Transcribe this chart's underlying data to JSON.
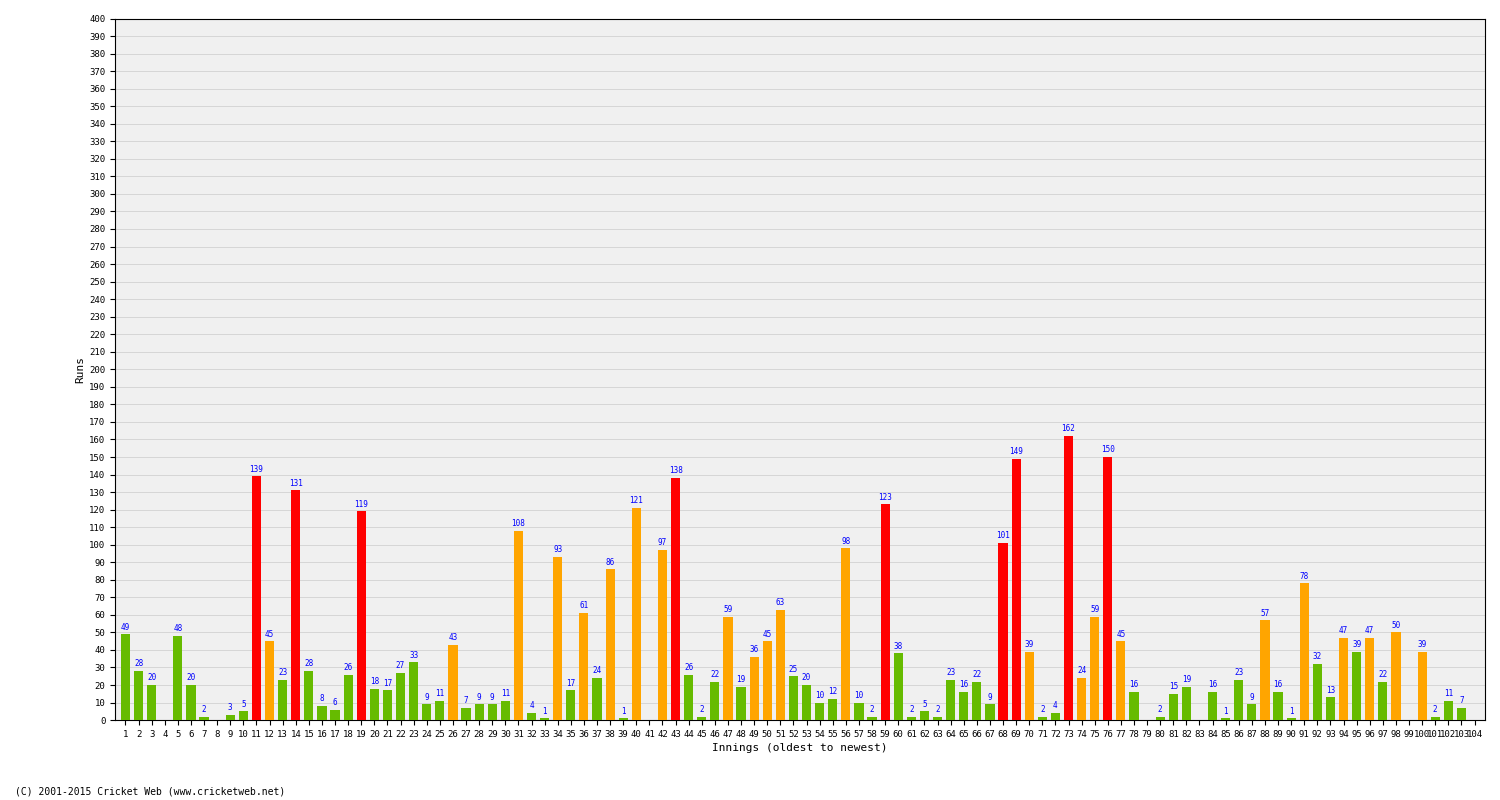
{
  "xlabel": "Innings (oldest to newest)",
  "ylabel": "Runs",
  "footer": "(C) 2001-2015 Cricket Web (www.cricketweb.net)",
  "ylim": [
    0,
    400
  ],
  "innings": [
    1,
    2,
    3,
    4,
    5,
    6,
    7,
    8,
    9,
    10,
    11,
    12,
    13,
    14,
    15,
    16,
    17,
    18,
    19,
    20,
    21,
    22,
    23,
    24,
    25,
    26,
    27,
    28,
    29,
    30,
    31,
    32,
    33,
    34,
    35,
    36,
    37,
    38,
    39,
    40,
    41,
    42,
    43,
    44,
    45,
    46,
    47,
    48,
    49,
    50,
    51,
    52,
    53,
    54,
    55,
    56,
    57,
    58,
    59,
    60,
    61,
    62,
    63,
    64,
    65,
    66,
    67,
    68,
    69,
    70,
    71,
    72,
    73,
    74,
    75,
    76,
    77,
    78,
    79,
    80,
    81,
    82,
    83,
    84,
    85,
    86,
    87,
    88,
    89,
    90,
    91,
    92,
    93,
    94,
    95,
    96,
    97,
    98,
    99,
    100,
    101,
    102,
    103,
    104
  ],
  "values": [
    49,
    28,
    20,
    0,
    48,
    20,
    2,
    0,
    3,
    5,
    139,
    45,
    23,
    131,
    28,
    8,
    6,
    26,
    119,
    18,
    17,
    27,
    33,
    9,
    11,
    43,
    7,
    9,
    9,
    11,
    108,
    4,
    1,
    93,
    17,
    61,
    24,
    86,
    1,
    121,
    0,
    97,
    138,
    26,
    2,
    22,
    59,
    19,
    36,
    45,
    63,
    25,
    20,
    10,
    12,
    98,
    10,
    2,
    123,
    38,
    2,
    5,
    2,
    23,
    16,
    22,
    9,
    101,
    149,
    39,
    2,
    4,
    162,
    24,
    59,
    150,
    45,
    16,
    0,
    2,
    15,
    19,
    0,
    16,
    1,
    23,
    9,
    57,
    16,
    1,
    78,
    32,
    13,
    47,
    39,
    47,
    22,
    50,
    0,
    39,
    2,
    11,
    7,
    0
  ],
  "colors": [
    "green",
    "green",
    "green",
    "green",
    "green",
    "green",
    "green",
    "green",
    "green",
    "green",
    "red",
    "orange",
    "green",
    "red",
    "green",
    "green",
    "green",
    "green",
    "red",
    "green",
    "green",
    "green",
    "green",
    "green",
    "green",
    "orange",
    "green",
    "green",
    "green",
    "green",
    "orange",
    "green",
    "green",
    "orange",
    "green",
    "orange",
    "green",
    "orange",
    "green",
    "orange",
    "green",
    "orange",
    "red",
    "green",
    "green",
    "green",
    "orange",
    "green",
    "orange",
    "orange",
    "orange",
    "green",
    "green",
    "green",
    "green",
    "orange",
    "green",
    "green",
    "red",
    "green",
    "green",
    "green",
    "green",
    "green",
    "green",
    "green",
    "green",
    "red",
    "red",
    "orange",
    "green",
    "green",
    "red",
    "orange",
    "orange",
    "red",
    "orange",
    "green",
    "green",
    "green",
    "green",
    "green",
    "green",
    "green",
    "green",
    "green",
    "green",
    "orange",
    "green",
    "green",
    "orange",
    "green",
    "green",
    "orange",
    "green",
    "orange",
    "green",
    "orange",
    "green",
    "orange",
    "green",
    "green",
    "green",
    "green"
  ],
  "color_map": {
    "red": "#ff0000",
    "orange": "#ffa500",
    "green": "#66bb00"
  },
  "bg_color": "#f0f0f0",
  "grid_color": "#cccccc",
  "bar_width": 0.7,
  "label_fontsize": 5.5,
  "tick_fontsize": 6.5,
  "ylabel_fontsize": 8,
  "xlabel_fontsize": 8,
  "footer_fontsize": 7,
  "value_label_color": "blue"
}
